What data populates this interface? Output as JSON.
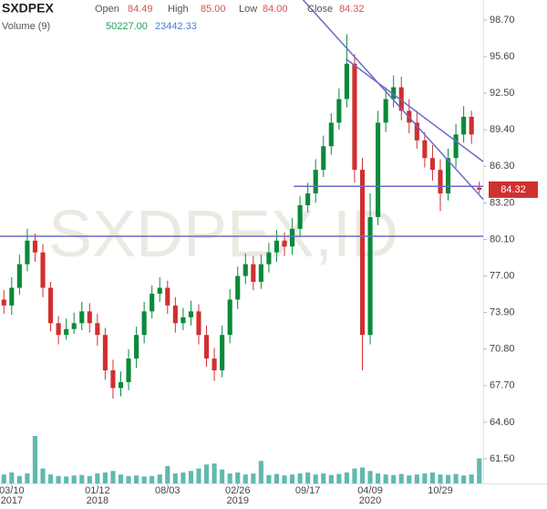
{
  "chart_data": {
    "type": "candlestick",
    "title": "SXDPEX",
    "watermark": "SXDPEX,ID",
    "header": [
      {
        "label": "Open",
        "value": "84.49"
      },
      {
        "label": "High",
        "value": "85.00"
      },
      {
        "label": "Low",
        "value": "84.00"
      },
      {
        "label": "Close",
        "value": "84.32"
      }
    ],
    "volume_label": "Volume (9)",
    "volume_values": [
      "50227.00",
      "23442.33"
    ],
    "categories": [
      null,
      [
        "03/10",
        "2017"
      ],
      null,
      null,
      null,
      null,
      null,
      null,
      null,
      null,
      null,
      null,
      [
        "01/12",
        "2018"
      ],
      null,
      null,
      null,
      null,
      null,
      null,
      null,
      null,
      [
        "08/03"
      ],
      null,
      null,
      null,
      null,
      null,
      null,
      null,
      null,
      [
        "02/26",
        "2019"
      ],
      null,
      null,
      null,
      null,
      null,
      null,
      null,
      null,
      [
        "09/17"
      ],
      null,
      null,
      null,
      null,
      null,
      null,
      null,
      [
        "04/09",
        "2020"
      ],
      null,
      null,
      null,
      null,
      null,
      null,
      null,
      null,
      [
        "10/29"
      ],
      null,
      null,
      null,
      null,
      null
    ],
    "open": [
      75,
      74.5,
      76,
      78,
      80,
      79,
      76,
      73,
      72,
      72.5,
      73,
      74,
      73,
      72,
      69,
      67.5,
      68,
      70,
      72,
      74,
      75.5,
      76,
      74.5,
      73,
      73.5,
      74,
      72,
      70,
      69,
      72,
      75,
      77,
      78,
      76.5,
      78,
      79,
      80,
      79.5,
      81,
      83,
      84,
      86,
      88,
      90,
      92,
      95,
      86,
      72,
      82,
      90,
      92,
      93,
      91,
      90,
      88.5,
      87,
      86,
      84,
      87,
      89,
      90.5,
      84.49
    ],
    "high": [
      75.8,
      76.9,
      78.8,
      81,
      80.6,
      79.7,
      76.5,
      73.6,
      73.4,
      73.9,
      74.8,
      74.7,
      73.8,
      72.6,
      69.9,
      68.9,
      70.8,
      72.7,
      74.8,
      76.2,
      76.9,
      76.6,
      75.2,
      74.3,
      74.9,
      74.6,
      72.8,
      70.9,
      72.8,
      75.9,
      77.8,
      78.9,
      78.7,
      78.8,
      79.8,
      80.9,
      80.7,
      81.9,
      83.8,
      84.9,
      86.9,
      88.9,
      90.8,
      92.9,
      97.5,
      95.8,
      87,
      84,
      91,
      93,
      94,
      93.9,
      92,
      91,
      89.2,
      88.1,
      86.9,
      87.8,
      89.9,
      91.4,
      91,
      85
    ],
    "low": [
      73.8,
      73.7,
      75.4,
      77.4,
      78.2,
      75.2,
      72.3,
      71.2,
      71.6,
      72.1,
      72.4,
      72.2,
      71.1,
      68.2,
      66.6,
      66.8,
      67.3,
      69.2,
      71.3,
      73.4,
      74.8,
      73.8,
      72.2,
      72.4,
      72.8,
      71.2,
      69.3,
      68.1,
      68.4,
      71.3,
      74.2,
      76.3,
      75.8,
      75.9,
      77.3,
      78.2,
      78.7,
      78.8,
      80.3,
      82.4,
      83.2,
      85.4,
      87.3,
      89.4,
      91.3,
      84.9,
      69,
      71.2,
      81.3,
      89.2,
      91.3,
      90.2,
      89.1,
      87.8,
      86.2,
      85.1,
      82.5,
      83.4,
      86.2,
      88.3,
      88.2,
      84
    ],
    "close": [
      74.5,
      76,
      78,
      80,
      79,
      76,
      73,
      72,
      72.5,
      73,
      74,
      73,
      72,
      69,
      67.5,
      68,
      70,
      72,
      74,
      75.5,
      76,
      74.5,
      73,
      73.5,
      74,
      72,
      70,
      69,
      72,
      75,
      77,
      78,
      76.5,
      78,
      79,
      80,
      79.5,
      81,
      83,
      84,
      86,
      88,
      90,
      92,
      95,
      86,
      72,
      82,
      90,
      92,
      93,
      91,
      90,
      88.5,
      87,
      86,
      84,
      87,
      89,
      90.5,
      89,
      84.32
    ],
    "volume": [
      18000,
      22000,
      15000,
      20000,
      95000,
      30000,
      18000,
      15000,
      14000,
      16000,
      17000,
      15000,
      20000,
      22000,
      25000,
      18000,
      15000,
      16000,
      14000,
      15000,
      18000,
      35000,
      20000,
      22000,
      25000,
      30000,
      38000,
      40000,
      28000,
      20000,
      22000,
      18000,
      20000,
      45000,
      17000,
      19000,
      16000,
      18000,
      20000,
      22000,
      18000,
      20000,
      17000,
      19000,
      22000,
      30000,
      32000,
      25000,
      20000,
      18000,
      17000,
      19000,
      16000,
      18000,
      20000,
      22000,
      18000,
      17000,
      19000,
      16000,
      18000,
      50227
    ],
    "up_color": "#0a8a3a",
    "down_color": "#d03030",
    "volume_color": "#3aa89a",
    "header_value_color": "#d9534f",
    "volume_value_colors": [
      "#1f9e5a",
      "#4a7fd4"
    ],
    "trendline_color": "#6b6bc8",
    "trendlines": [
      {
        "x": [
          -0.5,
          61.5
        ],
        "y": [
          80.37,
          80.37
        ]
      },
      {
        "x": [
          37.2,
          61.5
        ],
        "y": [
          84.6,
          84.6
        ]
      },
      {
        "x": [
          38.4,
          61.5
        ],
        "y": [
          100.4,
          83.5
        ]
      },
      {
        "x": [
          43.9,
          61.5
        ],
        "y": [
          95.4,
          86.7
        ]
      }
    ],
    "ylim": [
      59.41,
      100.4
    ],
    "yticks": [
      {
        "value": 61.5,
        "label": "61.50"
      },
      {
        "value": 64.6,
        "label": "64.60"
      },
      {
        "value": 67.7,
        "label": "67.70"
      },
      {
        "value": 70.8,
        "label": "70.80"
      },
      {
        "value": 73.9,
        "label": "73.90"
      },
      {
        "value": 77,
        "label": "77.00"
      },
      {
        "value": 80.1,
        "label": "80.10"
      },
      {
        "value": 83.2,
        "label": "83.20"
      },
      {
        "value": 86.3,
        "label": "86.30"
      },
      {
        "value": 89.4,
        "label": "89.40"
      },
      {
        "value": 92.5,
        "label": "92.50"
      },
      {
        "value": 95.6,
        "label": "95.60"
      },
      {
        "value": 98.7,
        "label": "98.70"
      }
    ]
  }
}
